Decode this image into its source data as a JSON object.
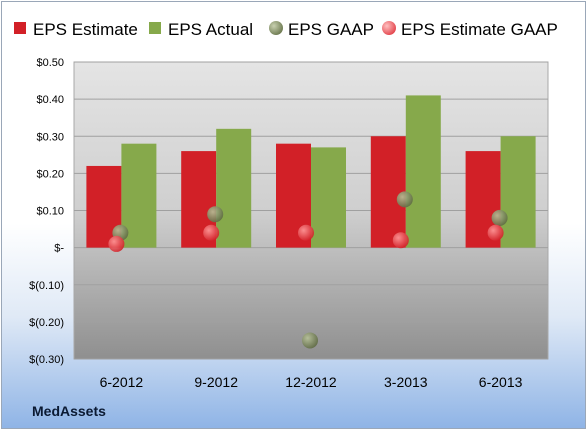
{
  "chart_data": {
    "type": "bar",
    "categories": [
      "6-2012",
      "9-2012",
      "12-2012",
      "3-2013",
      "6-2013"
    ],
    "series": [
      {
        "name": "EPS Estimate",
        "kind": "bar",
        "color": "#d22027",
        "values": [
          0.22,
          0.26,
          0.28,
          0.3,
          0.26
        ]
      },
      {
        "name": "EPS Actual",
        "kind": "bar",
        "color": "#86a94b",
        "values": [
          0.28,
          0.32,
          0.27,
          0.41,
          0.3
        ]
      },
      {
        "name": "EPS GAAP",
        "kind": "scatter",
        "color": "#7d8a5c",
        "values": [
          0.04,
          0.09,
          -0.25,
          0.13,
          0.08
        ]
      },
      {
        "name": "EPS Estimate GAAP",
        "kind": "scatter",
        "color": "#e5434b",
        "values": [
          0.01,
          0.04,
          0.04,
          0.02,
          0.04
        ]
      }
    ],
    "ylim": [
      -0.3,
      0.5
    ],
    "yticks": [
      0.5,
      0.4,
      0.3,
      0.2,
      0.1,
      0,
      -0.1,
      -0.2,
      -0.3
    ],
    "ytick_labels": [
      "$0.50",
      "$0.40",
      "$0.30",
      "$0.20",
      "$0.10",
      "$-",
      "$(0.10)",
      "$(0.20)",
      "$(0.30)"
    ],
    "grid": true,
    "legend_position": "top"
  },
  "footer": {
    "brand": "MedAssets"
  }
}
